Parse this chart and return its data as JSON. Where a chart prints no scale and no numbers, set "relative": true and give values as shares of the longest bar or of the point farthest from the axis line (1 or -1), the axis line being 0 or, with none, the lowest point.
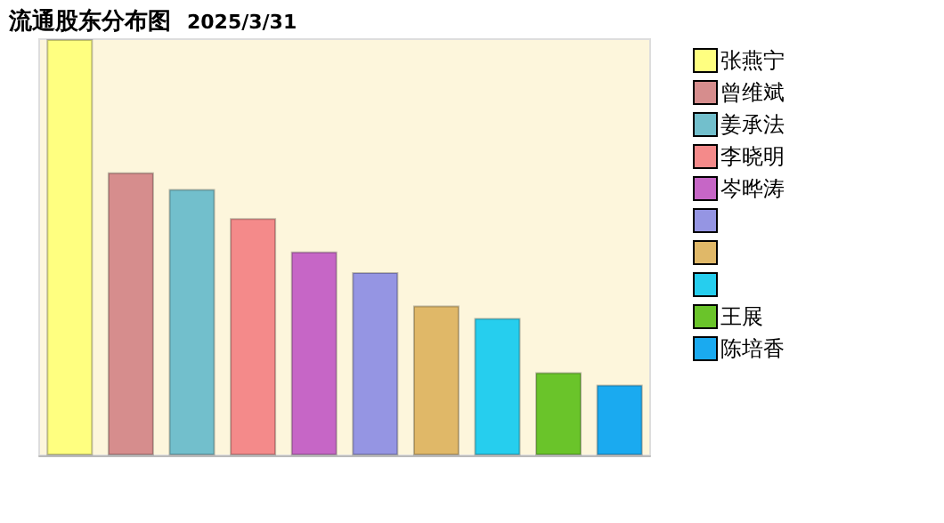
{
  "chart_data": {
    "type": "bar",
    "title": "流通股东分布图",
    "subtitle": "2025/3/31",
    "relative": true,
    "legend": "right",
    "stacked": true,
    "categories": [
      null,
      null,
      null,
      null,
      null,
      null,
      null,
      null,
      null,
      null
    ],
    "series": [
      {
        "name": "张燕宁",
        "color": "#ffff80",
        "values": [
          1,
          null,
          null,
          null,
          null,
          null,
          null,
          null,
          null,
          null
        ]
      },
      {
        "name": "曾维斌",
        "color": "#d68d8d",
        "values": [
          null,
          0.68,
          null,
          null,
          null,
          null,
          null,
          null,
          null,
          null
        ]
      },
      {
        "name": "姜承法",
        "color": "#72bfcc",
        "values": [
          null,
          null,
          0.64,
          null,
          null,
          null,
          null,
          null,
          null,
          null
        ]
      },
      {
        "name": "李晓明",
        "color": "#f48a8a",
        "values": [
          null,
          null,
          null,
          0.57,
          null,
          null,
          null,
          null,
          null,
          null
        ]
      },
      {
        "name": "岑晔涛",
        "color": "#c666c6",
        "values": [
          null,
          null,
          null,
          null,
          0.49,
          null,
          null,
          null,
          null,
          null
        ]
      },
      {
        "color": "#9595e3",
        "values": [
          null,
          null,
          null,
          null,
          null,
          0.44,
          null,
          null,
          null,
          null
        ]
      },
      {
        "color": "#e0b868",
        "values": [
          null,
          null,
          null,
          null,
          null,
          null,
          0.36,
          null,
          null,
          null
        ]
      },
      {
        "color": "#26ceee",
        "values": [
          null,
          null,
          null,
          null,
          null,
          null,
          null,
          0.33,
          null,
          null
        ]
      },
      {
        "name": "王展",
        "color": "#6ac42a",
        "values": [
          null,
          null,
          null,
          null,
          null,
          null,
          null,
          null,
          0.2,
          null
        ]
      },
      {
        "name": "陈培香",
        "color": "#1aaaf0",
        "values": [
          null,
          null,
          null,
          null,
          null,
          null,
          null,
          null,
          null,
          0.17
        ]
      }
    ]
  }
}
